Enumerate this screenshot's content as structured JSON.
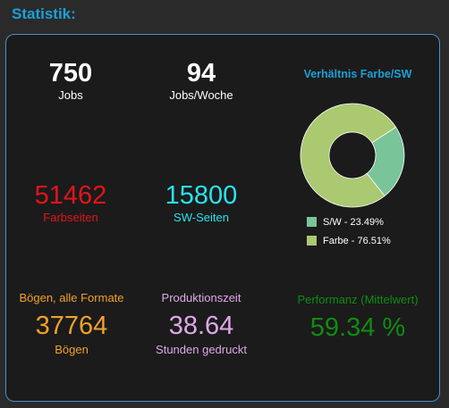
{
  "header": {
    "title": "Statistik:"
  },
  "stats": {
    "jobs": {
      "value": "750",
      "label": "Jobs"
    },
    "jobs_per_week": {
      "value": "94",
      "label": "Jobs/Woche"
    },
    "farbseiten": {
      "value": "51462",
      "label": "Farbseiten"
    },
    "sw_seiten": {
      "value": "15800",
      "label": "SW-Seiten"
    },
    "boegen": {
      "heading": "Bögen, alle Formate",
      "value": "37764",
      "label": "Bögen"
    },
    "produktion": {
      "heading": "Produktionszeit",
      "value": "38.64",
      "label": "Stunden gedruckt"
    },
    "performanz": {
      "heading": "Performanz (Mittelwert)",
      "value": "59.34 %"
    }
  },
  "colors": {
    "accent": "#1e9fd7",
    "sw": "#7ac49a",
    "farbe": "#aac970"
  },
  "chart_data": {
    "type": "pie",
    "donut": true,
    "title": "Verhältnis Farbe/SW",
    "legend_position": "bottom",
    "categories": [
      "S/W",
      "Farbe"
    ],
    "values": [
      23.49,
      76.51
    ],
    "labels": [
      "S/W - 23.49%",
      "Farbe - 76.51%"
    ],
    "colors": [
      "#7ac49a",
      "#aac970"
    ]
  }
}
